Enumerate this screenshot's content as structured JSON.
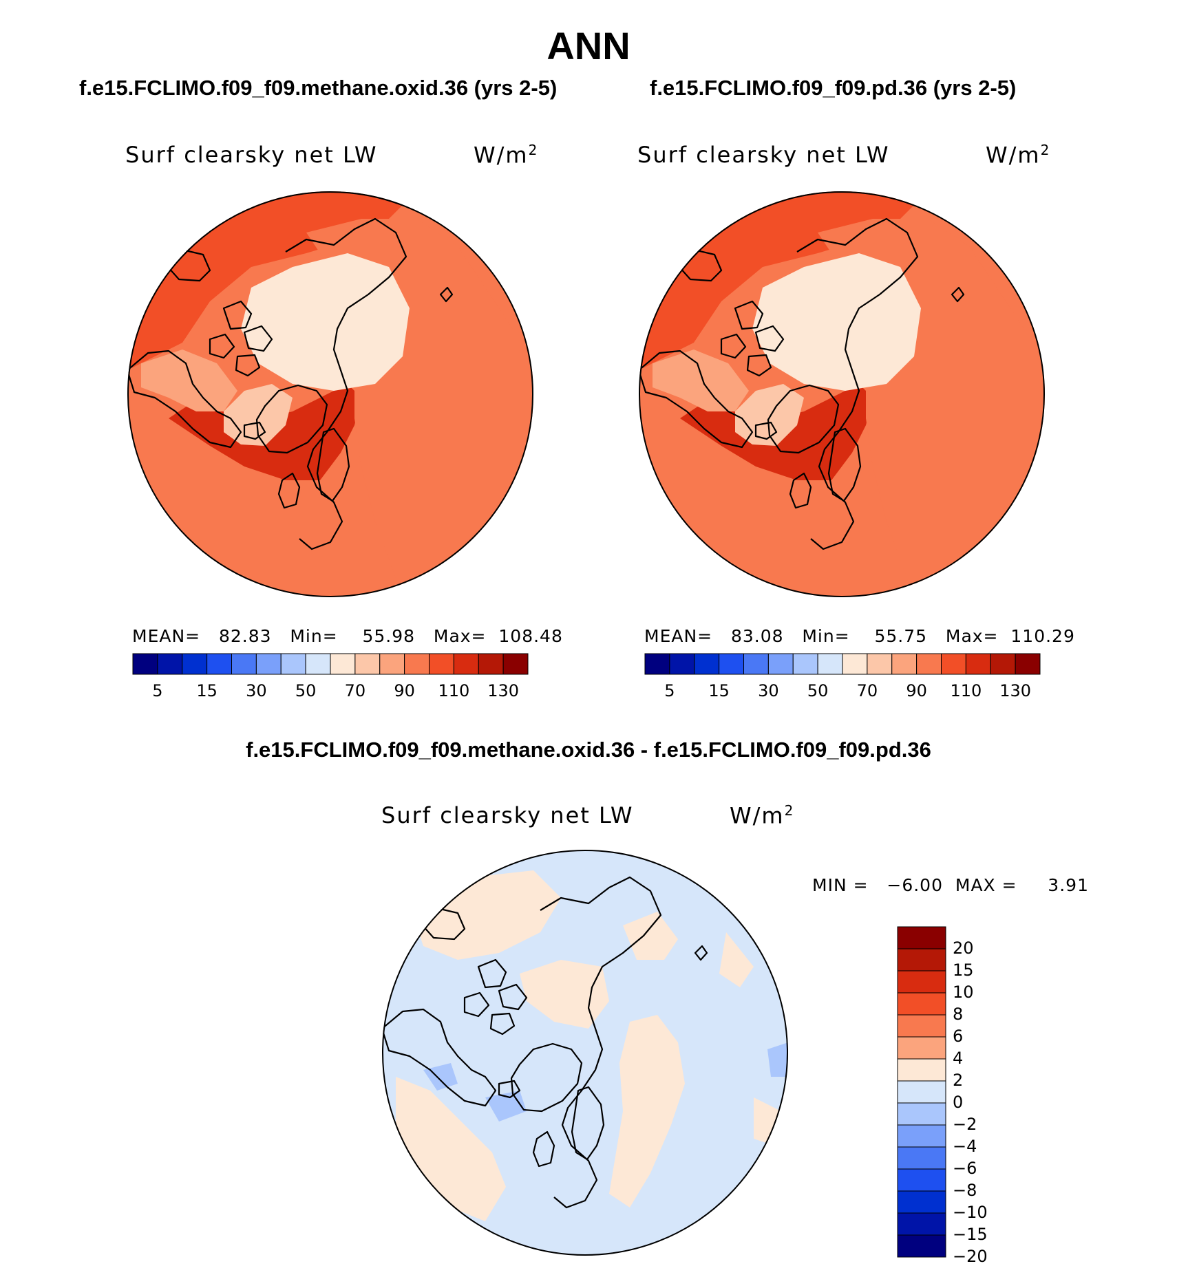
{
  "title": "ANN",
  "panels": [
    {
      "case": "f.e15.FCLIMO.f09_f09.methane.oxid.36 (yrs 2-5)",
      "variable": "Surf clearsky net LW",
      "units_base": "W/m",
      "units_sup": "2",
      "stats_text": "MEAN=   82.83   Min=    55.98   Max=  108.48",
      "stats": {
        "mean": 82.83,
        "min": 55.98,
        "max": 108.48
      },
      "region_levels": {
        "ocean": 90,
        "pacific": 100,
        "atlantic": 110,
        "siberia": 90,
        "arctic": 60,
        "greenland": 70,
        "canada": 80
      }
    },
    {
      "case": "f.e15.FCLIMO.f09_f09.pd.36 (yrs 2-5)",
      "variable": "Surf clearsky net LW",
      "units_base": "W/m",
      "units_sup": "2",
      "stats_text": "MEAN=   83.08   Min=    55.75   Max=  110.29",
      "stats": {
        "mean": 83.08,
        "min": 55.75,
        "max": 110.29
      },
      "region_levels": {
        "ocean": 90,
        "pacific": 100,
        "atlantic": 110,
        "siberia": 90,
        "arctic": 60,
        "greenland": 70,
        "canada": 80
      }
    }
  ],
  "colorbar_top": {
    "colors": [
      "#00007f",
      "#0014a8",
      "#0030d0",
      "#1e50f0",
      "#4a78f5",
      "#7aa0fa",
      "#aac6fc",
      "#d6e6fa",
      "#fde8d6",
      "#fcc7a9",
      "#fba47d",
      "#f8794f",
      "#f24f27",
      "#d82c10",
      "#b41806",
      "#8a0000"
    ],
    "tick_labels": [
      "5",
      "15",
      "30",
      "50",
      "70",
      "90",
      "110",
      "130"
    ]
  },
  "diff_panel": {
    "title": "f.e15.FCLIMO.f09_f09.methane.oxid.36 - f.e15.FCLIMO.f09_f09.pd.36",
    "variable": "Surf clearsky net LW",
    "units_base": "W/m",
    "units_sup": "2",
    "stats_text": "MIN =   −6.00  MAX =     3.91",
    "stats": {
      "min": -6.0,
      "max": 3.91
    }
  },
  "colorbar_diff": {
    "colors_top_to_bottom": [
      "#8a0000",
      "#b41806",
      "#d82c10",
      "#f24f27",
      "#f8794f",
      "#fba47d",
      "#fde8d6",
      "#d6e6fa",
      "#aac6fc",
      "#7aa0fa",
      "#4a78f5",
      "#1e50f0",
      "#0030d0",
      "#0014a8",
      "#00007f"
    ],
    "tick_labels": [
      "20",
      "15",
      "10",
      "8",
      "6",
      "4",
      "2",
      "0",
      "−2",
      "−4",
      "−6",
      "−8",
      "−10",
      "−15",
      "−20"
    ]
  }
}
